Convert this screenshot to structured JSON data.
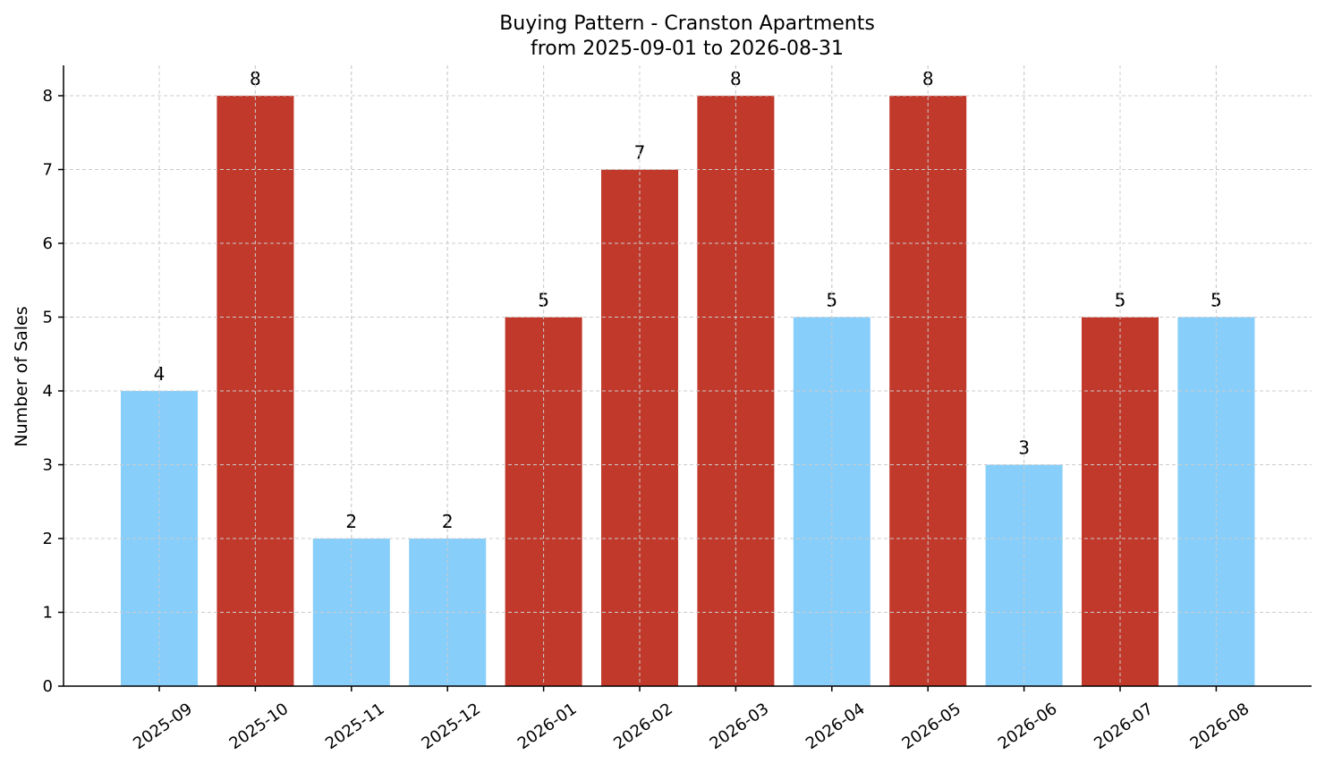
{
  "chart_data": {
    "type": "bar",
    "title": "Buying Pattern - Cranston Apartments",
    "subtitle": "from 2025-09-01 to 2026-08-31",
    "xlabel": "",
    "ylabel": "Number of Sales",
    "categories": [
      "2025-09",
      "2025-10",
      "2025-11",
      "2025-12",
      "2026-01",
      "2026-02",
      "2026-03",
      "2026-04",
      "2026-05",
      "2026-06",
      "2026-07",
      "2026-08"
    ],
    "values": [
      4,
      8,
      2,
      2,
      5,
      7,
      8,
      5,
      8,
      3,
      5,
      5
    ],
    "bar_colors": [
      "#87CEFA",
      "#C0392B",
      "#87CEFA",
      "#87CEFA",
      "#C0392B",
      "#C0392B",
      "#C0392B",
      "#87CEFA",
      "#C0392B",
      "#87CEFA",
      "#C0392B",
      "#87CEFA"
    ],
    "ylim": [
      0,
      8.4
    ],
    "yticks": [
      0,
      1,
      2,
      3,
      4,
      5,
      6,
      7,
      8
    ],
    "grid": true,
    "legend": "none"
  }
}
